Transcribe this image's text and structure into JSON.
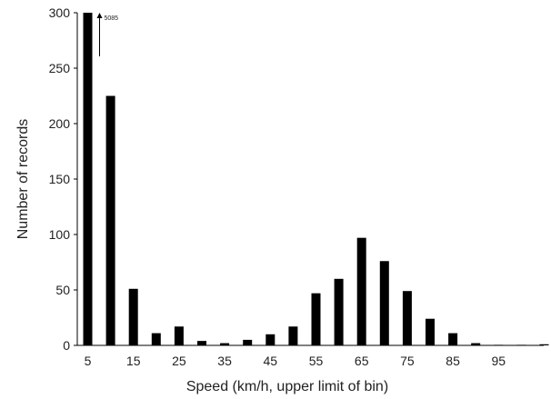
{
  "chart_data": {
    "type": "bar",
    "title": "",
    "xlabel": "Speed (km/h, upper limit of  bin)",
    "ylabel": "Number of records",
    "ylim": [
      0,
      300
    ],
    "y_ticks": [
      "0",
      "50",
      "100",
      "150",
      "200",
      "250",
      "300"
    ],
    "x_tick_labels": [
      "5",
      "15",
      "25",
      "35",
      "45",
      "55",
      "65",
      "75",
      "85",
      "95"
    ],
    "categories": [
      "5",
      "10",
      "15",
      "20",
      "25",
      "30",
      "35",
      "40",
      "45",
      "50",
      "55",
      "60",
      "65",
      "70",
      "75",
      "80",
      "85",
      "90",
      "95",
      "100",
      "105"
    ],
    "values": [
      300,
      225,
      51,
      11,
      17,
      4,
      2,
      5,
      10,
      17,
      47,
      60,
      97,
      76,
      49,
      24,
      11,
      2,
      0.5,
      0.5,
      1
    ],
    "grid": false,
    "legend": "none",
    "bar_color": "#000000",
    "annotation": {
      "text": "5085",
      "arrow": "up",
      "category": "5"
    }
  }
}
